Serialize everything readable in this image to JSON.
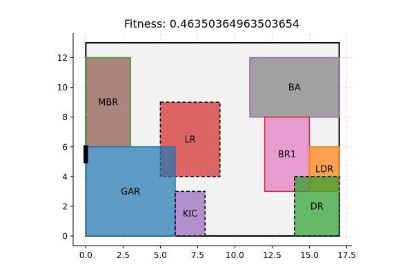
{
  "chart_data": {
    "type": "floor-plan",
    "title": "Fitness: 0.46350364963503654",
    "xlim": [
      -0.85,
      17.85
    ],
    "ylim": [
      -0.65,
      13.65
    ],
    "x_ticks": [
      0,
      2.5,
      5,
      7.5,
      10,
      12.5,
      15,
      17.5
    ],
    "x_tick_labels": [
      "0.0",
      "2.5",
      "5.0",
      "7.5",
      "10.0",
      "12.5",
      "15.0",
      "17.5"
    ],
    "y_ticks": [
      0,
      2,
      4,
      6,
      8,
      10,
      12
    ],
    "y_tick_labels": [
      "0",
      "2",
      "4",
      "6",
      "8",
      "10",
      "12"
    ],
    "grid": true,
    "boundary": {
      "x": 0,
      "y": 0,
      "width": 17,
      "height": 13
    },
    "door": {
      "x": -0.15,
      "y": 4.9,
      "width": 0.3,
      "height": 1.2,
      "color": "#000000"
    },
    "rooms": [
      {
        "name": "MBR",
        "x": 0,
        "y": 6,
        "width": 3,
        "height": 6,
        "fill": "#8c564b",
        "edge": "#2ca02c",
        "dashed": false
      },
      {
        "name": "BA",
        "x": 11,
        "y": 8,
        "width": 6,
        "height": 4,
        "fill": "#7f7f7f",
        "edge": "#9467bd",
        "dashed": false
      },
      {
        "name": "LR",
        "x": 5,
        "y": 4,
        "width": 4,
        "height": 5,
        "fill": "#d62728",
        "edge": "#000000",
        "dashed": true
      },
      {
        "name": "BR1",
        "x": 12,
        "y": 3,
        "width": 3,
        "height": 5,
        "fill": "#e377c2",
        "edge": "#d62728",
        "dashed": false
      },
      {
        "name": "LDR",
        "x": 15,
        "y": 3,
        "width": 2,
        "height": 3,
        "fill": "#ff7f0e",
        "edge": "#ff7f0e",
        "dashed": false
      },
      {
        "name": "GAR",
        "x": 0,
        "y": 0,
        "width": 6,
        "height": 6,
        "fill": "#1f77b4",
        "edge": "#1f77b4",
        "dashed": false
      },
      {
        "name": "KIC",
        "x": 6,
        "y": 0,
        "width": 2,
        "height": 3,
        "fill": "#9467bd",
        "edge": "#000000",
        "dashed": true
      },
      {
        "name": "DR",
        "x": 14,
        "y": 0,
        "width": 3,
        "height": 4,
        "fill": "#2ca02c",
        "edge": "#000000",
        "dashed": true
      }
    ]
  }
}
